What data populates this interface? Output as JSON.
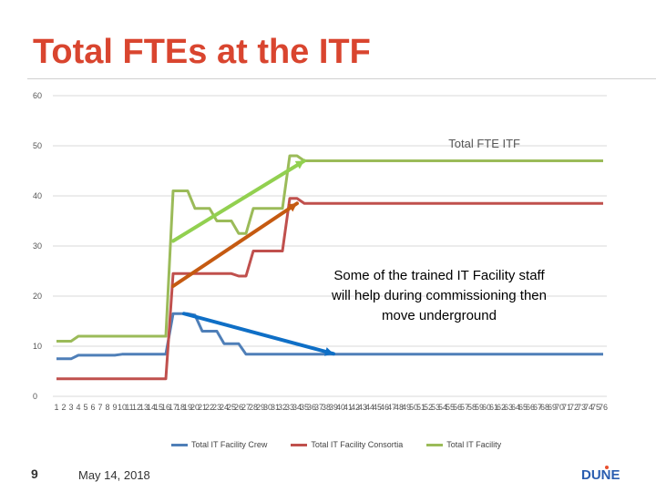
{
  "slide": {
    "title": "Total FTEs at the ITF",
    "page_number": "9",
    "date": "May 14, 2018",
    "annotation": "Some of the trained IT Facility staff will help during commissioning then move underground",
    "logo_text": "DUNE"
  },
  "colors": {
    "title": "#d9452f",
    "crew": "#4f7fb8",
    "consortia": "#c0504d",
    "facility": "#9bbb59",
    "arrow_green": "#92d050",
    "arrow_brown": "#c55a11",
    "arrow_blue": "#0f6fc6"
  },
  "chart_data": {
    "type": "line",
    "ylim": [
      0,
      60
    ],
    "yticks": [
      0,
      10,
      20,
      30,
      40,
      50,
      60
    ],
    "x": [
      1,
      2,
      3,
      4,
      5,
      6,
      7,
      8,
      9,
      10,
      11,
      12,
      13,
      14,
      15,
      16,
      17,
      18,
      19,
      20,
      21,
      22,
      23,
      24,
      25,
      26,
      27,
      28,
      29,
      30,
      31,
      32,
      33,
      34,
      35,
      36,
      37,
      38,
      39,
      40,
      41,
      42,
      43,
      44,
      45,
      46,
      47,
      48,
      49,
      50,
      51,
      52,
      53,
      54,
      55,
      56,
      57,
      58,
      59,
      60,
      61,
      62,
      63,
      64,
      65,
      66,
      67,
      68,
      69,
      70,
      71,
      72,
      73,
      74,
      75,
      76
    ],
    "series": [
      {
        "name": "Total IT Facility Crew",
        "color": "#4f7fb8",
        "values": [
          7.5,
          7.5,
          7.5,
          8.2,
          8.2,
          8.2,
          8.2,
          8.2,
          8.2,
          8.4,
          8.4,
          8.4,
          8.4,
          8.4,
          8.4,
          8.4,
          16.5,
          16.5,
          16.5,
          16.2,
          13,
          13,
          13,
          10.5,
          10.5,
          10.5,
          8.4,
          8.4,
          8.4,
          8.4,
          8.4,
          8.4,
          8.4,
          8.4,
          8.4,
          8.4,
          8.4,
          8.4,
          8.4,
          8.4,
          8.4,
          8.4,
          8.4,
          8.4,
          8.4,
          8.4,
          8.4,
          8.4,
          8.4,
          8.4,
          8.4,
          8.4,
          8.4,
          8.4,
          8.4,
          8.4,
          8.4,
          8.4,
          8.4,
          8.4,
          8.4,
          8.4,
          8.4,
          8.4,
          8.4,
          8.4,
          8.4,
          8.4,
          8.4,
          8.4,
          8.4,
          8.4,
          8.4,
          8.4,
          8.4,
          8.4
        ]
      },
      {
        "name": "Total IT Facility Consortia",
        "color": "#c0504d",
        "values": [
          3.5,
          3.5,
          3.5,
          3.5,
          3.5,
          3.5,
          3.5,
          3.5,
          3.5,
          3.5,
          3.5,
          3.5,
          3.5,
          3.5,
          3.5,
          3.5,
          24.5,
          24.5,
          24.5,
          24.5,
          24.5,
          24.5,
          24.5,
          24.5,
          24.5,
          24,
          24,
          29,
          29,
          29,
          29,
          29,
          39.5,
          39.5,
          38.5,
          38.5,
          38.5,
          38.5,
          38.5,
          38.5,
          38.5,
          38.5,
          38.5,
          38.5,
          38.5,
          38.5,
          38.5,
          38.5,
          38.5,
          38.5,
          38.5,
          38.5,
          38.5,
          38.5,
          38.5,
          38.5,
          38.5,
          38.5,
          38.5,
          38.5,
          38.5,
          38.5,
          38.5,
          38.5,
          38.5,
          38.5,
          38.5,
          38.5,
          38.5,
          38.5,
          38.5,
          38.5,
          38.5,
          38.5,
          38.5,
          38.5
        ]
      },
      {
        "name": "Total IT Facility",
        "color": "#9bbb59",
        "values": [
          11,
          11,
          11,
          12,
          12,
          12,
          12,
          12,
          12,
          12,
          12,
          12,
          12,
          12,
          12,
          12,
          41,
          41,
          41,
          37.5,
          37.5,
          37.5,
          35,
          35,
          35,
          32.5,
          32.5,
          37.5,
          37.5,
          37.5,
          37.5,
          37.5,
          48,
          48,
          47,
          47,
          47,
          47,
          47,
          47,
          47,
          47,
          47,
          47,
          47,
          47,
          47,
          47,
          47,
          47,
          47,
          47,
          47,
          47,
          47,
          47,
          47,
          47,
          47,
          47,
          47,
          47,
          47,
          47,
          47,
          47,
          47,
          47,
          47,
          47,
          47,
          47,
          47,
          47,
          47,
          47
        ]
      }
    ],
    "arrows": [
      {
        "label": "Total FTE ITF",
        "color": "#92d050",
        "from": [
          17,
          31
        ],
        "to": [
          35,
          47
        ]
      },
      {
        "color": "#c55a11",
        "from": [
          17,
          22
        ],
        "to": [
          34,
          38.5
        ]
      },
      {
        "color": "#0f6fc6",
        "from": [
          18.5,
          16.5
        ],
        "to": [
          39,
          8.5
        ]
      }
    ]
  }
}
